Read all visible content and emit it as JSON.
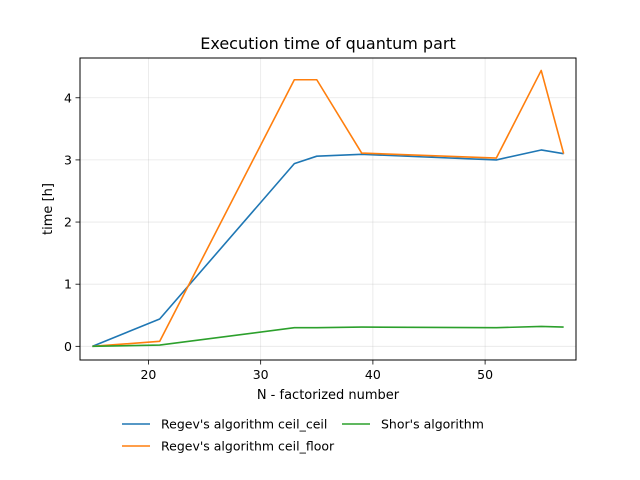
{
  "chart_data": {
    "type": "line",
    "title": "Execution time of quantum part",
    "xlabel": "N - factorized number",
    "ylabel": "time [h]",
    "xlim": [
      13.9,
      58.1
    ],
    "ylim": [
      -0.22,
      4.64
    ],
    "xticks": [
      20,
      30,
      40,
      50
    ],
    "yticks": [
      0,
      1,
      2,
      3,
      4
    ],
    "grid": true,
    "legend_position": "below",
    "series": [
      {
        "name": "Regev's algorithm ceil_ceil",
        "color": "#1f77b4",
        "x": [
          15,
          21,
          33,
          35,
          39,
          51,
          55,
          57
        ],
        "y": [
          0.0,
          0.44,
          2.94,
          3.06,
          3.09,
          3.0,
          3.16,
          3.1
        ]
      },
      {
        "name": "Regev's algorithm ceil_floor",
        "color": "#ff7f0e",
        "x": [
          15,
          21,
          33,
          35,
          39,
          51,
          55,
          57
        ],
        "y": [
          0.0,
          0.08,
          4.29,
          4.29,
          3.11,
          3.03,
          4.44,
          3.1
        ]
      },
      {
        "name": "Shor's algorithm",
        "color": "#2ca02c",
        "x": [
          15,
          21,
          33,
          35,
          39,
          51,
          55,
          57
        ],
        "y": [
          0.0,
          0.02,
          0.3,
          0.3,
          0.31,
          0.3,
          0.32,
          0.31
        ]
      }
    ]
  }
}
